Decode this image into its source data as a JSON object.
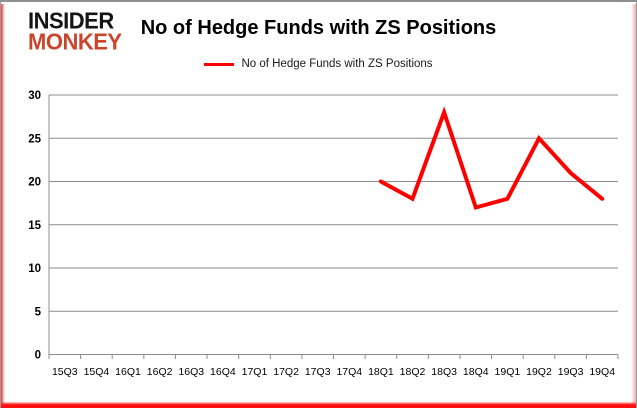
{
  "brand": {
    "line1": "INSIDER",
    "line2": "MONKEY"
  },
  "title": "No of Hedge Funds with ZS Positions",
  "legend": {
    "label": "No of Hedge Funds with ZS Positions"
  },
  "colors": {
    "line": "#ff0000",
    "grid": "#8c8c8c",
    "axis_text": "#000000",
    "brand_black": "#141414",
    "brand_red": "#c9462c",
    "border_red": "#ff1111",
    "border_gray": "#8f8f8f"
  },
  "chart_data": {
    "type": "line",
    "title": "No of Hedge Funds with ZS Positions",
    "xlabel": "",
    "ylabel": "",
    "categories": [
      "15Q3",
      "15Q4",
      "16Q1",
      "16Q2",
      "16Q3",
      "16Q4",
      "17Q1",
      "17Q2",
      "17Q3",
      "17Q4",
      "18Q1",
      "18Q2",
      "18Q3",
      "18Q4",
      "19Q1",
      "19Q2",
      "19Q3",
      "19Q4"
    ],
    "series": [
      {
        "name": "No of Hedge Funds with ZS Positions",
        "color": "#ff0000",
        "values": [
          null,
          null,
          null,
          null,
          null,
          null,
          null,
          null,
          null,
          null,
          20,
          18,
          28,
          17,
          18,
          25,
          21,
          18
        ]
      }
    ],
    "ylim": [
      0,
      30
    ],
    "yticks": [
      0,
      5,
      10,
      15,
      20,
      25,
      30
    ],
    "grid": true,
    "legend_position": "top-center"
  }
}
